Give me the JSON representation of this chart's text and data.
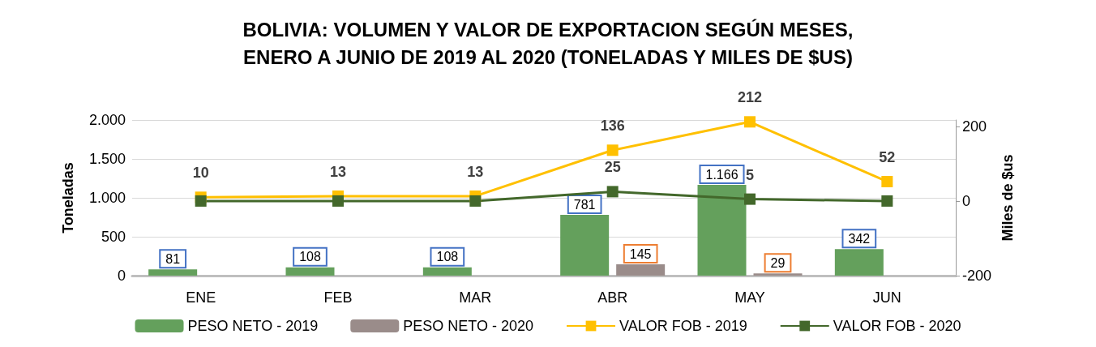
{
  "chart_data": {
    "type": "bar",
    "title": "BOLIVIA: VOLUMEN Y VALOR DE EXPORTACION SEGÚN MESES,\nENERO A JUNIO DE 2019 AL 2020 (TONELADAS Y MILES DE $US)",
    "ylabel": "Toneladas",
    "y2label": "Miles de $us",
    "categories": [
      "ENE",
      "FEB",
      "MAR",
      "ABR",
      "MAY",
      "JUN"
    ],
    "series": [
      {
        "name": "PESO NETO - 2019",
        "color": "#64a05c",
        "values": [
          81,
          108,
          108,
          781,
          1166,
          342
        ],
        "value_labels": [
          "81",
          "108",
          "108",
          "781",
          "1.166",
          "342"
        ]
      },
      {
        "name": "PESO NETO - 2020",
        "color": "#9a8c8a",
        "values": [
          null,
          null,
          null,
          145,
          29,
          null
        ],
        "value_labels": [
          null,
          null,
          null,
          "145",
          "29",
          null
        ]
      },
      {
        "name": "VALOR FOB - 2019",
        "type": "line",
        "axis": "y2",
        "color": "#ffc000",
        "values": [
          10,
          13,
          13,
          136,
          212,
          52
        ],
        "value_labels": [
          "10",
          "13",
          "13",
          "136",
          "212",
          "52"
        ]
      },
      {
        "name": "VALOR FOB - 2020",
        "type": "line",
        "axis": "y2",
        "color": "#43682b",
        "values": [
          0,
          0,
          0,
          25,
          5,
          0
        ],
        "value_labels": [
          null,
          null,
          null,
          "25",
          "5",
          null
        ]
      }
    ],
    "ylim": [
      0,
      2000
    ],
    "yticks": [
      0,
      {
        "value": 500,
        "label": "500"
      },
      {
        "value": 1000,
        "label": "1.000"
      },
      {
        "value": 1500,
        "label": "1.500"
      },
      {
        "value": 2000,
        "label": "2.000"
      }
    ],
    "y2lim": [
      -200,
      217
    ],
    "y2ticks": [
      -200,
      0,
      200
    ],
    "grid": "y",
    "legend": "bottom",
    "marker": "square"
  }
}
